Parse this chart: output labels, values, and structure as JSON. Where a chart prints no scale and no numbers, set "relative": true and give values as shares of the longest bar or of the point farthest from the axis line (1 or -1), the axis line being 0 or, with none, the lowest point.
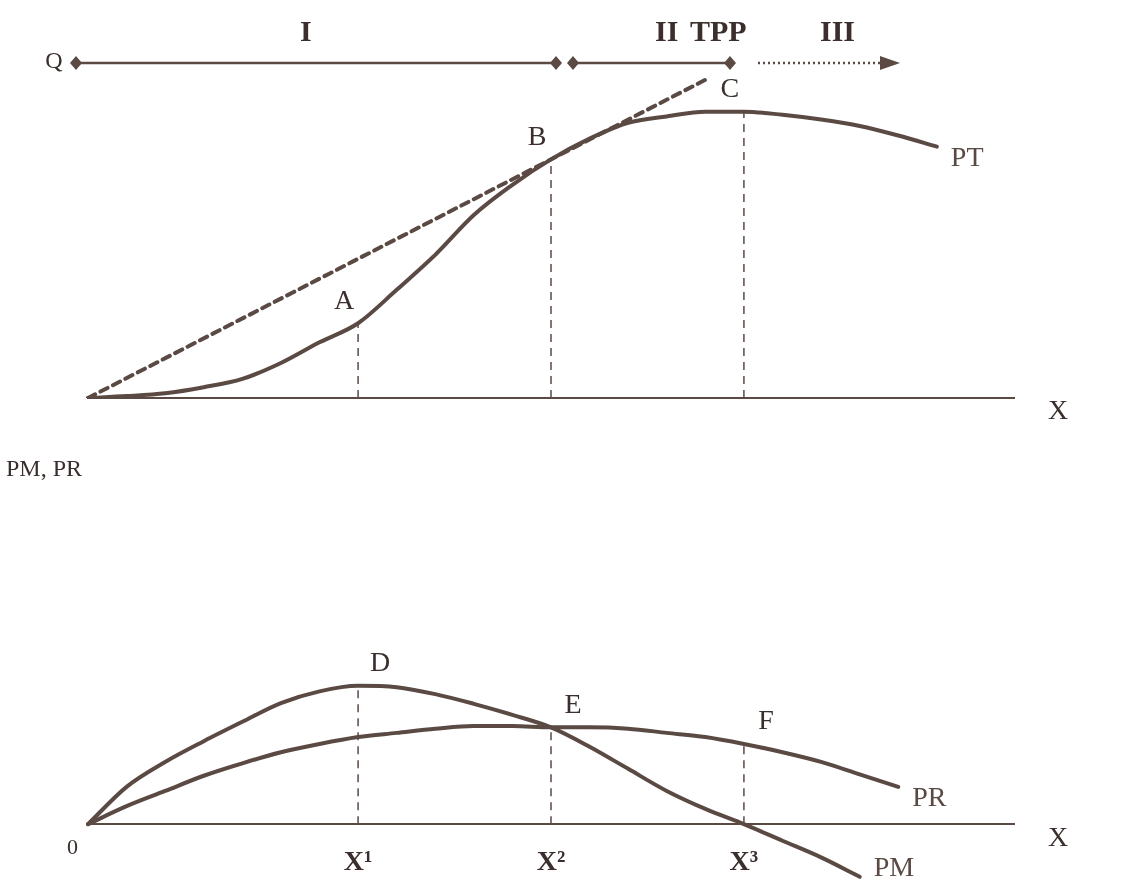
{
  "chart_data": [
    {
      "type": "line",
      "ylabel": "Q",
      "xlabel": "X",
      "relative": true,
      "tick_labels": false,
      "legend": false,
      "grid": false,
      "marker": "none",
      "categories": [
        null,
        null,
        null,
        null,
        null,
        null,
        null,
        "X¹",
        null,
        null,
        null,
        null,
        "X²",
        null,
        null,
        null,
        null,
        "X³",
        null,
        null,
        null,
        null,
        null,
        null,
        null
      ],
      "series": [
        {
          "name": "PT",
          "color": "#5b4a44",
          "values": [
            0,
            0.006,
            0.015,
            0.034,
            0.06,
            0.11,
            0.175,
            0.235,
            0.34,
            0.45,
            0.575,
            0.67,
            0.75,
            0.815,
            0.865,
            0.885,
            0.9,
            0.9,
            0.89,
            0.875,
            0.855,
            0.825,
            0.79,
            null,
            null
          ]
        },
        {
          "color": "#5b4a44",
          "line_style": "dashed",
          "values": [
            0,
            null,
            null,
            null,
            null,
            null,
            null,
            null,
            null,
            null,
            null,
            null,
            null,
            null,
            null,
            null,
            1,
            null,
            null,
            null,
            null,
            null,
            null,
            null,
            null
          ]
        }
      ],
      "ref_lines": [
        {
          "axis": "x",
          "value": "X¹",
          "line_style": "dashed"
        },
        {
          "axis": "x",
          "value": "X²",
          "line_style": "dashed"
        },
        {
          "axis": "x",
          "value": "X³",
          "line_style": "dashed"
        }
      ],
      "annotations": [
        "I",
        "II",
        "TPP",
        "III",
        {
          "text": "A",
          "x": "X¹",
          "y": 0.235
        },
        {
          "text": "B",
          "x": "X²",
          "y": 0.75
        },
        {
          "text": "C",
          "x": "X³",
          "y": 0.9
        }
      ]
    },
    {
      "type": "line",
      "ylabel": "PM, PR",
      "xlabel": "X",
      "relative": true,
      "legend": false,
      "grid": false,
      "marker": "none",
      "categories": [
        null,
        null,
        null,
        null,
        null,
        null,
        null,
        "X¹",
        null,
        null,
        null,
        null,
        "X²",
        null,
        null,
        null,
        null,
        "X³",
        null,
        null,
        null,
        null,
        null,
        null,
        null
      ],
      "series": [
        {
          "name": "PR",
          "color": "#5b4a44",
          "values": [
            0,
            0.13,
            0.24,
            0.35,
            0.44,
            0.52,
            0.58,
            0.63,
            0.66,
            0.69,
            0.71,
            0.71,
            0.7,
            0.7,
            0.69,
            0.66,
            0.63,
            0.58,
            0.52,
            0.45,
            0.36,
            0.27,
            null,
            null,
            null
          ]
        },
        {
          "name": "PM",
          "color": "#5b4a44",
          "values": [
            0,
            0.27,
            0.45,
            0.6,
            0.74,
            0.875,
            0.96,
            1,
            0.99,
            0.94,
            0.87,
            0.79,
            0.7,
            0.56,
            0.4,
            0.24,
            0.11,
            0,
            -0.12,
            -0.24,
            -0.38,
            null,
            null,
            null,
            null
          ]
        }
      ],
      "ref_lines": [
        {
          "axis": "x",
          "value": "X¹",
          "line_style": "dashed"
        },
        {
          "axis": "x",
          "value": "X²",
          "line_style": "dashed"
        },
        {
          "axis": "x",
          "value": "X³",
          "line_style": "dashed"
        }
      ],
      "annotations": [
        "0",
        {
          "text": "D",
          "x": "X¹",
          "y": 1
        },
        {
          "text": "E",
          "x": "X²",
          "y": 0.7
        },
        {
          "text": "F",
          "x": "X³",
          "y": 0.58
        }
      ]
    }
  ]
}
